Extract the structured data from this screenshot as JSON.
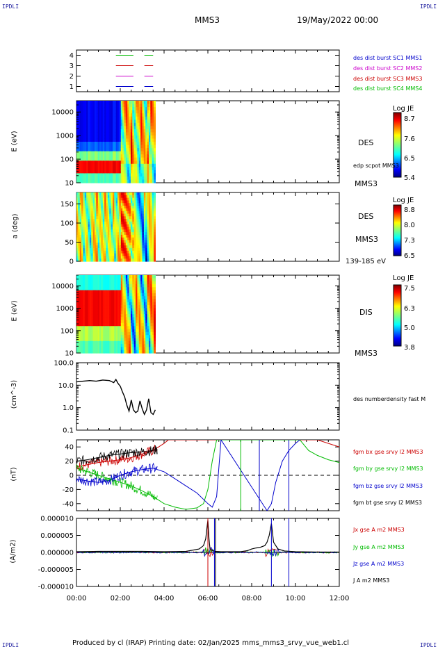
{
  "corners": {
    "tl": "IPDLI",
    "tr": "IPDLI",
    "bl": "IPDLI",
    "br": "IPDLI"
  },
  "header": {
    "spacecraft": "MMS3",
    "date": "19/May/2022 00:00"
  },
  "footer": {
    "text": "Produced by cl (IRAP)   Printing date: 02/Jan/2025   mms_mms3_srvy_vue_web1.cl"
  },
  "colors": {
    "mms1": "#0000cc",
    "mms2": "#cc00cc",
    "mms3": "#cc0000",
    "mms4": "#00bb00",
    "black": "#000000"
  },
  "chart_data": [
    {
      "type": "line",
      "title": "",
      "ylim": [
        0.5,
        4.5
      ],
      "yticks": [
        "1",
        "2",
        "3",
        "4"
      ],
      "series": [
        {
          "name": "des dist burst SC1 MMS1",
          "y": 1,
          "color": "#0000cc",
          "segments": [
            [
              1.8,
              2.6
            ],
            [
              3.1,
              3.5
            ]
          ]
        },
        {
          "name": "des dist burst SC2 MMS2",
          "y": 2,
          "color": "#cc00cc",
          "segments": [
            [
              1.8,
              2.6
            ],
            [
              3.1,
              3.5
            ]
          ]
        },
        {
          "name": "des dist burst SC3 MMS3",
          "y": 3,
          "color": "#cc0000",
          "segments": [
            [
              1.8,
              2.6
            ],
            [
              3.1,
              3.5
            ]
          ]
        },
        {
          "name": "des dist burst SC4 MMS4",
          "y": 4,
          "color": "#00bb00",
          "segments": [
            [
              1.8,
              2.6
            ],
            [
              3.1,
              3.5
            ]
          ]
        }
      ]
    },
    {
      "type": "heatmap",
      "ylabel": "E (eV)",
      "yscale": "log",
      "ylim": [
        10,
        30000
      ],
      "yticks": [
        "10",
        "100",
        "1000",
        "10000"
      ],
      "data_extent_hours": [
        0,
        3.6
      ],
      "right_labels": [
        "DES",
        "edp scpot MMS3",
        "MMS3"
      ],
      "colorbar": {
        "title": "Log JE",
        "ticks": [
          "8.7",
          "7.6",
          "6.5",
          "5.4"
        ]
      }
    },
    {
      "type": "heatmap",
      "ylabel": "a (deg)",
      "ylim": [
        0,
        180
      ],
      "yticks": [
        "0",
        "50",
        "100",
        "150"
      ],
      "data_extent_hours": [
        0,
        3.6
      ],
      "right_labels": [
        "DES",
        "MMS3",
        "139-185 eV"
      ],
      "colorbar": {
        "title": "Log JE",
        "ticks": [
          "8.8",
          "8.0",
          "7.3",
          "6.5"
        ]
      }
    },
    {
      "type": "heatmap",
      "ylabel": "E (eV)",
      "yscale": "log",
      "ylim": [
        10,
        30000
      ],
      "yticks": [
        "10",
        "100",
        "1000",
        "10000"
      ],
      "data_extent_hours": [
        0,
        3.6
      ],
      "right_labels": [
        "DIS",
        "MMS3"
      ],
      "colorbar": {
        "title": "Log JE",
        "ticks": [
          "7.5",
          "6.3",
          "5.0",
          "3.8"
        ]
      }
    },
    {
      "type": "line",
      "ylabel": "(cm^-3)",
      "yscale": "log",
      "ylim": [
        0.1,
        100
      ],
      "yticks": [
        "0.1",
        "1.0",
        "10.0",
        "100.0"
      ],
      "series": [
        {
          "name": "des numberdensity fast M",
          "color": "#000000",
          "x": [
            0,
            0.3,
            0.6,
            0.9,
            1.2,
            1.5,
            1.7,
            1.8,
            1.9,
            2.0,
            2.1,
            2.2,
            2.3,
            2.4,
            2.5,
            2.6,
            2.7,
            2.8,
            2.9,
            3.0,
            3.1,
            3.2,
            3.3,
            3.4,
            3.5,
            3.6
          ],
          "y": [
            14,
            15,
            16,
            15,
            17,
            16,
            13,
            18,
            12,
            9,
            5,
            3,
            1.3,
            0.7,
            2.2,
            0.8,
            0.6,
            0.7,
            2.0,
            0.9,
            0.5,
            0.8,
            2.5,
            0.6,
            0.5,
            0.8
          ]
        }
      ]
    },
    {
      "type": "line",
      "ylabel": "(nT)",
      "ylim": [
        -50,
        50
      ],
      "yticks": [
        "-40",
        "-20",
        "0",
        "20",
        "40"
      ],
      "series": [
        {
          "name": "fgm bx gse srvy l2 MMS3",
          "color": "#cc0000",
          "x": [
            0,
            0.5,
            1,
            1.5,
            2,
            2.5,
            3,
            3.5,
            4,
            4.2,
            11.0,
            11.5,
            12
          ],
          "y": [
            12,
            15,
            18,
            20,
            22,
            25,
            30,
            35,
            45,
            50,
            50,
            45,
            40
          ]
        },
        {
          "name": "fgm by gse srvy l2 MMS3",
          "color": "#00bb00",
          "x": [
            0,
            0.5,
            1,
            1.5,
            2,
            2.5,
            3,
            3.5,
            4,
            4.5,
            5,
            5.5,
            5.8,
            6.0,
            6.2,
            6.4,
            10.2,
            10.6,
            11,
            11.5,
            12
          ],
          "y": [
            10,
            5,
            0,
            -5,
            -10,
            -15,
            -22,
            -30,
            -40,
            -45,
            -48,
            -46,
            -40,
            -20,
            20,
            50,
            50,
            35,
            28,
            22,
            18
          ]
        },
        {
          "name": "fgm bz gse srvy l2 MMS3",
          "color": "#0000cc",
          "x": [
            0,
            0.5,
            1,
            1.5,
            2,
            2.5,
            3,
            3.5,
            4,
            4.5,
            5,
            5.5,
            6,
            6.2,
            6.4,
            6.6,
            8.7,
            8.9,
            9.1,
            9.4,
            9.7,
            10.0,
            10.2
          ],
          "y": [
            -5,
            -8,
            -10,
            -7,
            0,
            5,
            8,
            10,
            5,
            -5,
            -15,
            -25,
            -40,
            -45,
            -30,
            50,
            -50,
            -40,
            -10,
            20,
            35,
            45,
            50
          ]
        },
        {
          "name": "fgm bt gse srvy l2 MMS3",
          "color": "#000000",
          "x": [
            0,
            0.5,
            1,
            1.5,
            2,
            2.5,
            3,
            3.5,
            3.7
          ],
          "y": [
            20,
            22,
            25,
            28,
            30,
            32,
            33,
            35,
            36
          ]
        }
      ]
    },
    {
      "type": "line",
      "ylabel": "(A/m2)",
      "ylim": [
        -1e-05,
        1e-05
      ],
      "yticks": [
        "-0.000010",
        "-0.000005",
        "0.000000",
        "0.000005",
        "0.000010"
      ],
      "series": [
        {
          "name": "Jx gse A m2 MMS3",
          "color": "#cc0000"
        },
        {
          "name": "Jy gse A m2 MMS3",
          "color": "#00bb00"
        },
        {
          "name": "Jz gse A m2 MMS3",
          "color": "#0000cc"
        },
        {
          "name": "J A m2 MMS3",
          "color": "#000000",
          "x": [
            0,
            1,
            2,
            3,
            4,
            5,
            5.6,
            5.8,
            5.9,
            6.0,
            6.05,
            6.1,
            6.3,
            6.6,
            7,
            7.5,
            7.8,
            8.0,
            8.2,
            8.4,
            8.6,
            8.7,
            8.8,
            8.9,
            9.0,
            9.2,
            9.5,
            10,
            11,
            12
          ],
          "y": [
            2e-07,
            3e-07,
            3e-07,
            3e-07,
            2e-07,
            3e-07,
            1e-06,
            2e-06,
            4e-06,
            9.5e-06,
            4e-06,
            1e-06,
            3e-07,
            2e-07,
            2e-07,
            2e-07,
            5e-07,
            1e-06,
            1.3e-06,
            1.5e-06,
            2e-06,
            3e-06,
            5e-06,
            8.5e-06,
            3e-06,
            1e-06,
            4e-07,
            2e-07,
            1e-07,
            1e-07
          ]
        }
      ]
    }
  ],
  "xaxis": {
    "ticks": [
      "00:00",
      "02:00",
      "04:00",
      "06:00",
      "08:00",
      "10:00",
      "12:00"
    ],
    "range_hours": [
      0,
      12
    ]
  }
}
